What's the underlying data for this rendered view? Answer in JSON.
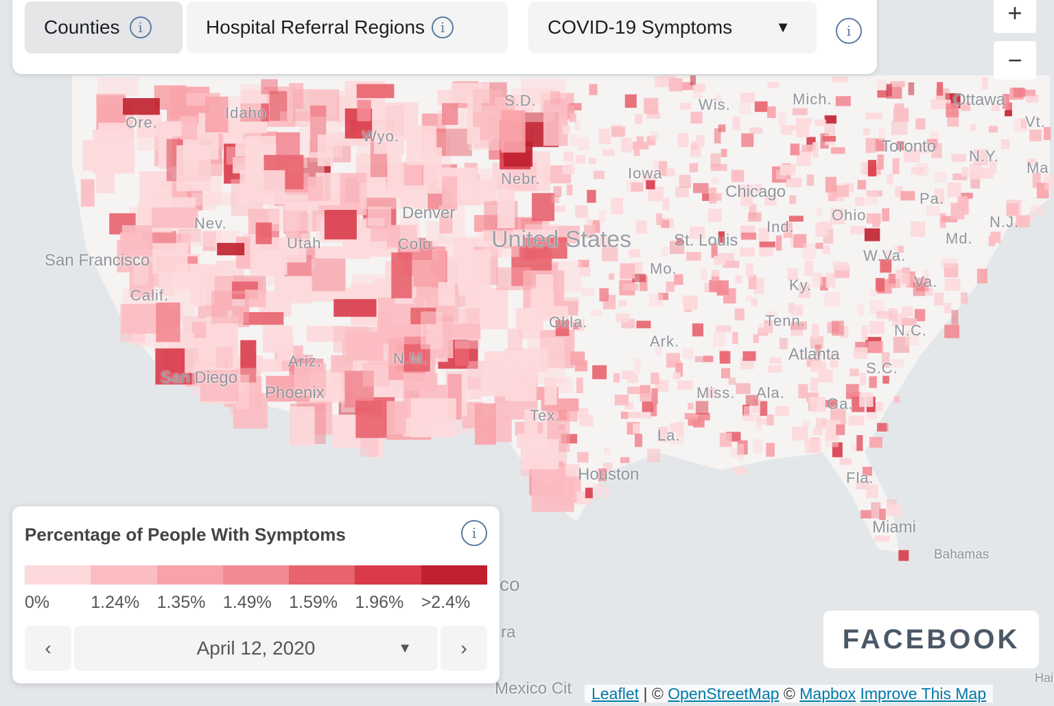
{
  "header": {
    "tabs": [
      {
        "label": "Counties",
        "active": true
      },
      {
        "label": "Hospital Referral Regions",
        "active": false
      }
    ],
    "metric_select": {
      "value": "COVID-19 Symptoms"
    },
    "info_icon": "info-icon"
  },
  "zoom_controls": {
    "zoom_in": "+",
    "zoom_out": "−"
  },
  "map_labels": {
    "states": [
      "Ore.",
      "Idaho",
      "Wyo.",
      "S.D.",
      "Wis.",
      "Mich.",
      "Nebr.",
      "Iowa",
      "Nev.",
      "Utah",
      "Colo.",
      "Calif.",
      "Ariz.",
      "N.M.",
      "Okla.",
      "Ark.",
      "Tex.",
      "Mo.",
      "Ind.",
      "Ohio",
      "Ky.",
      "Tenn.",
      "Miss.",
      "Ala.",
      "Ga.",
      "La.",
      "Fla.",
      "S.C.",
      "N.C.",
      "Va.",
      "W.Va.",
      "Md.",
      "Pa.",
      "N.J.",
      "N.Y.",
      "Vt.",
      "Ma"
    ],
    "cities": [
      "San Francisco",
      "San Diego",
      "Phoenix",
      "Denver",
      "Chicago",
      "St. Louis",
      "Atlanta",
      "Houston",
      "Miami",
      "Toronto",
      "Ottawa",
      "Bahamas",
      "Mexico Cit",
      "co",
      "ra",
      "Hai"
    ],
    "country": "United States"
  },
  "legend": {
    "title": "Percentage of People With Symptoms",
    "bins": [
      "0%",
      "1.24%",
      "1.35%",
      "1.49%",
      "1.59%",
      "1.96%",
      ">2.4%"
    ],
    "colors": [
      "#fdd9dc",
      "#fbbcc2",
      "#f8a3aa",
      "#f28a93",
      "#e8636e",
      "#d93b4a",
      "#c0202f"
    ],
    "date": "April 12, 2020",
    "prev": "‹",
    "next": "›"
  },
  "branding": {
    "logo": "FACEBOOK"
  },
  "attribution": {
    "leaflet": "Leaflet",
    "osm": "OpenStreetMap",
    "mapbox": "Mapbox",
    "improve": "Improve This Map",
    "sep": " | © ",
    "copy": " © "
  }
}
